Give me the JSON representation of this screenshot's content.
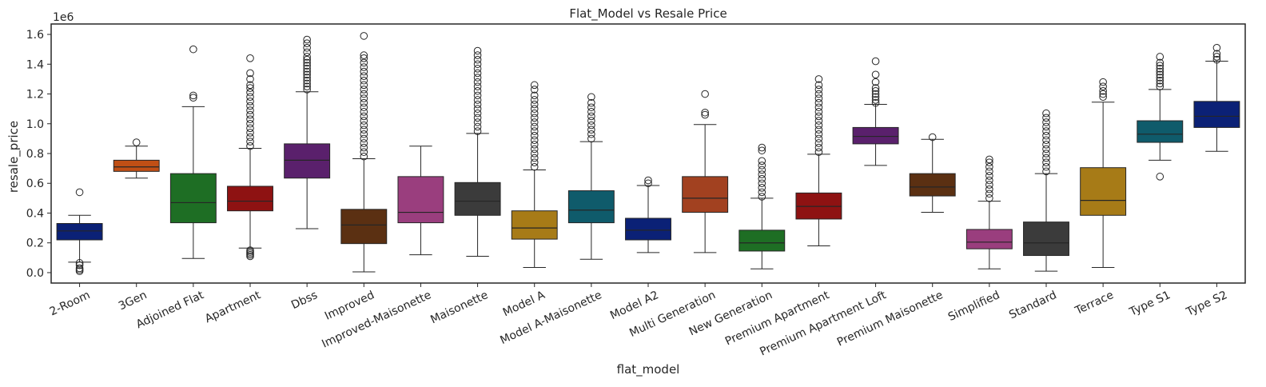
{
  "chart_data": {
    "type": "box",
    "title": "Flat_Model vs Resale Price",
    "xlabel": "flat_model",
    "ylabel": "resale_price",
    "y_offset_label": "1e6",
    "ylim": [
      -0.07,
      1.67
    ],
    "yticks": [
      0.0,
      0.2,
      0.4,
      0.6,
      0.8,
      1.0,
      1.2,
      1.4,
      1.6
    ],
    "ytick_labels": [
      "0.0",
      "0.2",
      "0.4",
      "0.6",
      "0.8",
      "1.0",
      "1.2",
      "1.4",
      "1.6"
    ],
    "grid": false,
    "categories": [
      {
        "name": "2-Room",
        "color": "#0b2176",
        "q1": 0.22,
        "median": 0.28,
        "q3": 0.33,
        "whislo": 0.07,
        "whishi": 0.385,
        "outliers": [
          0.54,
          0.065,
          0.05,
          0.03,
          0.02,
          0.01
        ]
      },
      {
        "name": "3Gen",
        "color": "#c04f15",
        "q1": 0.68,
        "median": 0.71,
        "q3": 0.755,
        "whislo": 0.635,
        "whishi": 0.85,
        "outliers": [
          0.875
        ]
      },
      {
        "name": "Adjoined Flat",
        "color": "#1e6e24",
        "q1": 0.335,
        "median": 0.47,
        "q3": 0.665,
        "whislo": 0.095,
        "whishi": 1.115,
        "outliers": [
          1.19,
          1.175,
          1.5
        ]
      },
      {
        "name": "Apartment",
        "color": "#8e1212",
        "q1": 0.415,
        "median": 0.48,
        "q3": 0.58,
        "whislo": 0.165,
        "whishi": 0.835,
        "outliers": [
          0.15,
          0.14,
          0.13,
          0.12,
          0.11,
          0.85,
          0.88,
          0.91,
          0.94,
          0.97,
          1.0,
          1.03,
          1.06,
          1.09,
          1.12,
          1.15,
          1.18,
          1.21,
          1.24,
          1.26,
          1.3,
          1.34,
          1.44
        ]
      },
      {
        "name": "Dbss",
        "color": "#5a206c",
        "q1": 0.635,
        "median": 0.755,
        "q3": 0.865,
        "whislo": 0.295,
        "whishi": 1.215,
        "outliers": [
          1.23,
          1.25,
          1.27,
          1.29,
          1.31,
          1.33,
          1.35,
          1.37,
          1.39,
          1.41,
          1.43,
          1.45,
          1.48,
          1.51,
          1.54,
          1.565
        ]
      },
      {
        "name": "Improved",
        "color": "#5b3012",
        "q1": 0.195,
        "median": 0.32,
        "q3": 0.425,
        "whislo": 0.005,
        "whishi": 0.765,
        "outliers": [
          0.78,
          0.81,
          0.84,
          0.87,
          0.9,
          0.93,
          0.96,
          0.99,
          1.02,
          1.05,
          1.08,
          1.11,
          1.14,
          1.17,
          1.2,
          1.23,
          1.26,
          1.29,
          1.32,
          1.35,
          1.38,
          1.41,
          1.44,
          1.46,
          1.59
        ]
      },
      {
        "name": "Improved-Maisonette",
        "color": "#9a3e7e",
        "q1": 0.335,
        "median": 0.405,
        "q3": 0.645,
        "whislo": 0.12,
        "whishi": 0.85,
        "outliers": []
      },
      {
        "name": "Maisonette",
        "color": "#3b3b3b",
        "q1": 0.385,
        "median": 0.48,
        "q3": 0.605,
        "whislo": 0.11,
        "whishi": 0.935,
        "outliers": [
          0.95,
          0.98,
          1.01,
          1.04,
          1.07,
          1.1,
          1.13,
          1.16,
          1.19,
          1.22,
          1.25,
          1.28,
          1.31,
          1.34,
          1.37,
          1.4,
          1.43,
          1.46,
          1.49
        ]
      },
      {
        "name": "Model A",
        "color": "#a77b17",
        "q1": 0.225,
        "median": 0.3,
        "q3": 0.415,
        "whislo": 0.035,
        "whishi": 0.69,
        "outliers": [
          0.71,
          0.74,
          0.77,
          0.8,
          0.83,
          0.86,
          0.89,
          0.92,
          0.95,
          0.98,
          1.01,
          1.04,
          1.07,
          1.1,
          1.13,
          1.16,
          1.19,
          1.23,
          1.26
        ]
      },
      {
        "name": "Model A-Maisonette",
        "color": "#0f5b6b",
        "q1": 0.335,
        "median": 0.42,
        "q3": 0.55,
        "whislo": 0.09,
        "whishi": 0.88,
        "outliers": [
          0.9,
          0.93,
          0.96,
          0.99,
          1.02,
          1.05,
          1.08,
          1.11,
          1.14,
          1.18
        ]
      },
      {
        "name": "Model A2",
        "color": "#0b2176",
        "q1": 0.22,
        "median": 0.285,
        "q3": 0.365,
        "whislo": 0.135,
        "whishi": 0.585,
        "outliers": [
          0.6,
          0.62
        ]
      },
      {
        "name": "Multi Generation",
        "color": "#a24120",
        "q1": 0.405,
        "median": 0.5,
        "q3": 0.645,
        "whislo": 0.135,
        "whishi": 0.995,
        "outliers": [
          1.06,
          1.075,
          1.2
        ]
      },
      {
        "name": "New Generation",
        "color": "#1e6e24",
        "q1": 0.145,
        "median": 0.2,
        "q3": 0.285,
        "whislo": 0.025,
        "whishi": 0.5,
        "outliers": [
          0.51,
          0.54,
          0.57,
          0.6,
          0.63,
          0.66,
          0.69,
          0.72,
          0.75,
          0.82,
          0.84
        ]
      },
      {
        "name": "Premium Apartment",
        "color": "#8e1212",
        "q1": 0.36,
        "median": 0.445,
        "q3": 0.535,
        "whislo": 0.18,
        "whishi": 0.795,
        "outliers": [
          0.81,
          0.84,
          0.87,
          0.9,
          0.93,
          0.96,
          0.99,
          1.02,
          1.05,
          1.08,
          1.11,
          1.14,
          1.17,
          1.2,
          1.23,
          1.26,
          1.3
        ]
      },
      {
        "name": "Premium Apartment Loft",
        "color": "#5a206c",
        "q1": 0.865,
        "median": 0.915,
        "q3": 0.975,
        "whislo": 0.72,
        "whishi": 1.13,
        "outliers": [
          1.14,
          1.16,
          1.18,
          1.2,
          1.22,
          1.24,
          1.28,
          1.33,
          1.42
        ]
      },
      {
        "name": "Premium Maisonette",
        "color": "#5b3012",
        "q1": 0.515,
        "median": 0.575,
        "q3": 0.665,
        "whislo": 0.405,
        "whishi": 0.895,
        "outliers": [
          0.91
        ]
      },
      {
        "name": "Simplified",
        "color": "#9a3e7e",
        "q1": 0.16,
        "median": 0.205,
        "q3": 0.29,
        "whislo": 0.025,
        "whishi": 0.48,
        "outliers": [
          0.5,
          0.53,
          0.56,
          0.59,
          0.62,
          0.65,
          0.68,
          0.71,
          0.74,
          0.76
        ]
      },
      {
        "name": "Standard",
        "color": "#3b3b3b",
        "q1": 0.115,
        "median": 0.2,
        "q3": 0.34,
        "whislo": 0.01,
        "whishi": 0.665,
        "outliers": [
          0.68,
          0.71,
          0.74,
          0.77,
          0.8,
          0.83,
          0.86,
          0.89,
          0.92,
          0.95,
          0.98,
          1.01,
          1.04,
          1.07
        ]
      },
      {
        "name": "Terrace",
        "color": "#a77b17",
        "q1": 0.385,
        "median": 0.485,
        "q3": 0.705,
        "whislo": 0.035,
        "whishi": 1.145,
        "outliers": [
          1.18,
          1.2,
          1.22,
          1.25,
          1.28
        ]
      },
      {
        "name": "Type S1",
        "color": "#0f5b6b",
        "q1": 0.875,
        "median": 0.93,
        "q3": 1.02,
        "whislo": 0.755,
        "whishi": 1.23,
        "outliers": [
          0.645,
          1.25,
          1.27,
          1.29,
          1.31,
          1.33,
          1.35,
          1.37,
          1.39,
          1.41,
          1.45
        ]
      },
      {
        "name": "Type S2",
        "color": "#0b2176",
        "q1": 0.975,
        "median": 1.05,
        "q3": 1.15,
        "whislo": 0.815,
        "whishi": 1.42,
        "outliers": [
          1.43,
          1.45,
          1.47,
          1.51
        ]
      }
    ]
  }
}
